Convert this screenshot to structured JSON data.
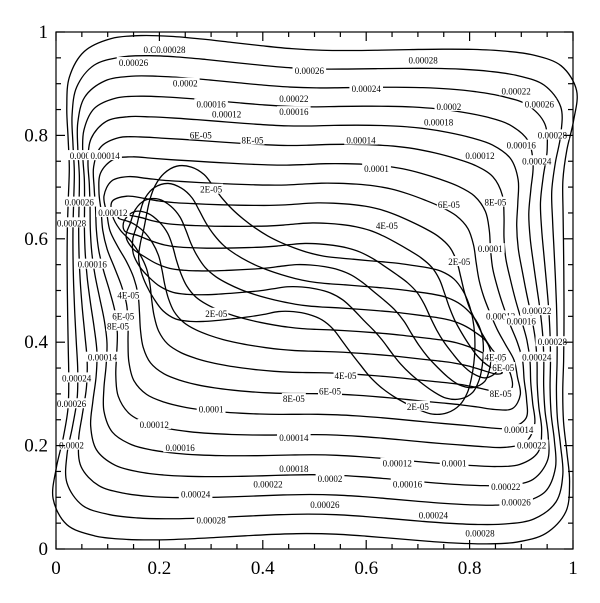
{
  "chart_data": {
    "type": "contour",
    "title": "",
    "xlabel": "",
    "ylabel": "",
    "xlim": [
      0,
      1
    ],
    "ylim": [
      0,
      1
    ],
    "grid": false,
    "x_ticks": [
      "0",
      "0.2",
      "0.4",
      "0.6",
      "0.8",
      "1"
    ],
    "y_ticks": [
      "0",
      "0.2",
      "0.4",
      "0.6",
      "0.8",
      "1"
    ],
    "levels": [
      2e-05,
      4e-05,
      6e-05,
      8e-05,
      0.0001,
      0.00012,
      0.00014,
      0.00016,
      0.00018,
      0.0002,
      0.00022,
      0.00024,
      0.00026,
      0.00028
    ],
    "level_labels": [
      "2E-05",
      "4E-05",
      "6E-05",
      "8E-05",
      "0.0001",
      "0.00012",
      "0.00014",
      "0.00016",
      "0.00018",
      "0.0002",
      "0.00022",
      "0.00024",
      "0.00026",
      "0.00028"
    ],
    "inner_contour": {
      "level": "2E-05",
      "points": [
        [
          0.17,
          0.62
        ],
        [
          0.19,
          0.7
        ],
        [
          0.23,
          0.74
        ],
        [
          0.28,
          0.73
        ],
        [
          0.32,
          0.68
        ],
        [
          0.36,
          0.64
        ],
        [
          0.42,
          0.6
        ],
        [
          0.5,
          0.57
        ],
        [
          0.58,
          0.56
        ],
        [
          0.68,
          0.55
        ],
        [
          0.76,
          0.53
        ],
        [
          0.8,
          0.47
        ],
        [
          0.81,
          0.38
        ],
        [
          0.79,
          0.29
        ],
        [
          0.74,
          0.26
        ],
        [
          0.68,
          0.28
        ],
        [
          0.62,
          0.32
        ],
        [
          0.57,
          0.38
        ],
        [
          0.52,
          0.44
        ],
        [
          0.45,
          0.46
        ],
        [
          0.38,
          0.45
        ],
        [
          0.28,
          0.44
        ],
        [
          0.22,
          0.45
        ],
        [
          0.18,
          0.5
        ],
        [
          0.16,
          0.56
        ]
      ]
    },
    "outer_contour": {
      "level": "0.00028",
      "points": [
        [
          0.03,
          0.04
        ],
        [
          0.5,
          0.03
        ],
        [
          0.95,
          0.03
        ],
        [
          0.98,
          0.3
        ],
        [
          0.98,
          0.7
        ],
        [
          0.97,
          0.94
        ],
        [
          0.5,
          0.965
        ],
        [
          0.07,
          0.975
        ],
        [
          0.025,
          0.7
        ],
        [
          0.025,
          0.3
        ]
      ]
    },
    "annotations": [
      {
        "text": "0.C0.00028",
        "x": 0.21,
        "y": 0.965
      },
      {
        "text": "0.00026",
        "x": 0.15,
        "y": 0.94
      },
      {
        "text": "0.00026",
        "x": 0.49,
        "y": 0.925
      },
      {
        "text": "0.00028",
        "x": 0.71,
        "y": 0.945
      },
      {
        "text": "0.0002",
        "x": 0.25,
        "y": 0.9
      },
      {
        "text": "0.00024",
        "x": 0.6,
        "y": 0.89
      },
      {
        "text": "0.00022",
        "x": 0.89,
        "y": 0.885
      },
      {
        "text": "0.00016",
        "x": 0.3,
        "y": 0.86
      },
      {
        "text": "0.00022",
        "x": 0.46,
        "y": 0.87
      },
      {
        "text": "0.00012",
        "x": 0.33,
        "y": 0.84
      },
      {
        "text": "0.00016",
        "x": 0.46,
        "y": 0.845
      },
      {
        "text": "0.0002",
        "x": 0.76,
        "y": 0.855
      },
      {
        "text": "0.00018",
        "x": 0.74,
        "y": 0.825
      },
      {
        "text": "6E-05",
        "x": 0.28,
        "y": 0.8
      },
      {
        "text": "8E-05",
        "x": 0.38,
        "y": 0.79
      },
      {
        "text": "0.00014",
        "x": 0.59,
        "y": 0.79
      },
      {
        "text": "0.00012",
        "x": 0.82,
        "y": 0.76
      },
      {
        "text": "0.0001",
        "x": 0.62,
        "y": 0.735
      },
      {
        "text": "6E-05",
        "x": 0.76,
        "y": 0.665
      },
      {
        "text": "4E-05",
        "x": 0.64,
        "y": 0.625
      },
      {
        "text": "2E-05",
        "x": 0.3,
        "y": 0.695
      },
      {
        "text": "2E-05",
        "x": 0.78,
        "y": 0.555
      },
      {
        "text": "2E-05",
        "x": 0.31,
        "y": 0.455
      },
      {
        "text": "4E-05",
        "x": 0.56,
        "y": 0.335
      },
      {
        "text": "6E-05",
        "x": 0.53,
        "y": 0.305
      },
      {
        "text": "8E-05",
        "x": 0.46,
        "y": 0.29
      },
      {
        "text": "2E-05",
        "x": 0.7,
        "y": 0.275
      },
      {
        "text": "0.0001",
        "x": 0.3,
        "y": 0.27
      },
      {
        "text": "0.00012",
        "x": 0.19,
        "y": 0.24
      },
      {
        "text": "0.00014",
        "x": 0.46,
        "y": 0.215
      },
      {
        "text": "0.00016",
        "x": 0.24,
        "y": 0.195
      },
      {
        "text": "0.00018",
        "x": 0.46,
        "y": 0.155
      },
      {
        "text": "0.00012",
        "x": 0.66,
        "y": 0.165
      },
      {
        "text": "0.0001",
        "x": 0.77,
        "y": 0.165
      },
      {
        "text": "0.00022",
        "x": 0.41,
        "y": 0.125
      },
      {
        "text": "0.0002",
        "x": 0.53,
        "y": 0.135
      },
      {
        "text": "0.00016",
        "x": 0.68,
        "y": 0.125
      },
      {
        "text": "0.00024",
        "x": 0.27,
        "y": 0.105
      },
      {
        "text": "0.00026",
        "x": 0.52,
        "y": 0.085
      },
      {
        "text": "0.00028",
        "x": 0.3,
        "y": 0.055
      },
      {
        "text": "0.00024",
        "x": 0.73,
        "y": 0.065
      },
      {
        "text": "0.00028",
        "x": 0.82,
        "y": 0.03
      },
      {
        "text": "0.00026",
        "x": 0.89,
        "y": 0.09
      },
      {
        "text": "0.00022",
        "x": 0.87,
        "y": 0.12
      },
      {
        "text": "0.00026",
        "x": 0.935,
        "y": 0.86
      },
      {
        "text": "0.00028",
        "x": 0.96,
        "y": 0.8
      },
      {
        "text": "0.00016",
        "x": 0.9,
        "y": 0.78
      },
      {
        "text": "0.00024",
        "x": 0.93,
        "y": 0.75
      },
      {
        "text": "8E-05",
        "x": 0.85,
        "y": 0.67
      },
      {
        "text": "0.0001",
        "x": 0.84,
        "y": 0.58
      },
      {
        "text": "0.00012",
        "x": 0.86,
        "y": 0.45
      },
      {
        "text": "0.00016",
        "x": 0.9,
        "y": 0.44
      },
      {
        "text": "0.00022",
        "x": 0.93,
        "y": 0.46
      },
      {
        "text": "0.00028",
        "x": 0.96,
        "y": 0.4
      },
      {
        "text": "0.00024",
        "x": 0.93,
        "y": 0.37
      },
      {
        "text": "4E-05",
        "x": 0.85,
        "y": 0.37
      },
      {
        "text": "6E-05",
        "x": 0.865,
        "y": 0.35
      },
      {
        "text": "8E-05",
        "x": 0.86,
        "y": 0.3
      },
      {
        "text": "0.00014",
        "x": 0.895,
        "y": 0.23
      },
      {
        "text": "0.00022",
        "x": 0.92,
        "y": 0.2
      },
      {
        "text": "0.00028",
        "x": 0.03,
        "y": 0.63
      },
      {
        "text": "0.00026",
        "x": 0.045,
        "y": 0.67
      },
      {
        "text": "0.00024",
        "x": 0.055,
        "y": 0.76
      },
      {
        "text": "0.00014",
        "x": 0.095,
        "y": 0.76
      },
      {
        "text": "0.00012",
        "x": 0.11,
        "y": 0.65
      },
      {
        "text": "0.00016",
        "x": 0.07,
        "y": 0.55
      },
      {
        "text": "4E-05",
        "x": 0.14,
        "y": 0.49
      },
      {
        "text": "6E-05",
        "x": 0.13,
        "y": 0.45
      },
      {
        "text": "8E-05",
        "x": 0.12,
        "y": 0.43
      },
      {
        "text": "0.00014",
        "x": 0.09,
        "y": 0.37
      },
      {
        "text": "0.00024",
        "x": 0.04,
        "y": 0.33
      },
      {
        "text": "0.0002",
        "x": 0.03,
        "y": 0.2
      },
      {
        "text": "0.00026",
        "x": 0.03,
        "y": 0.28
      }
    ]
  }
}
